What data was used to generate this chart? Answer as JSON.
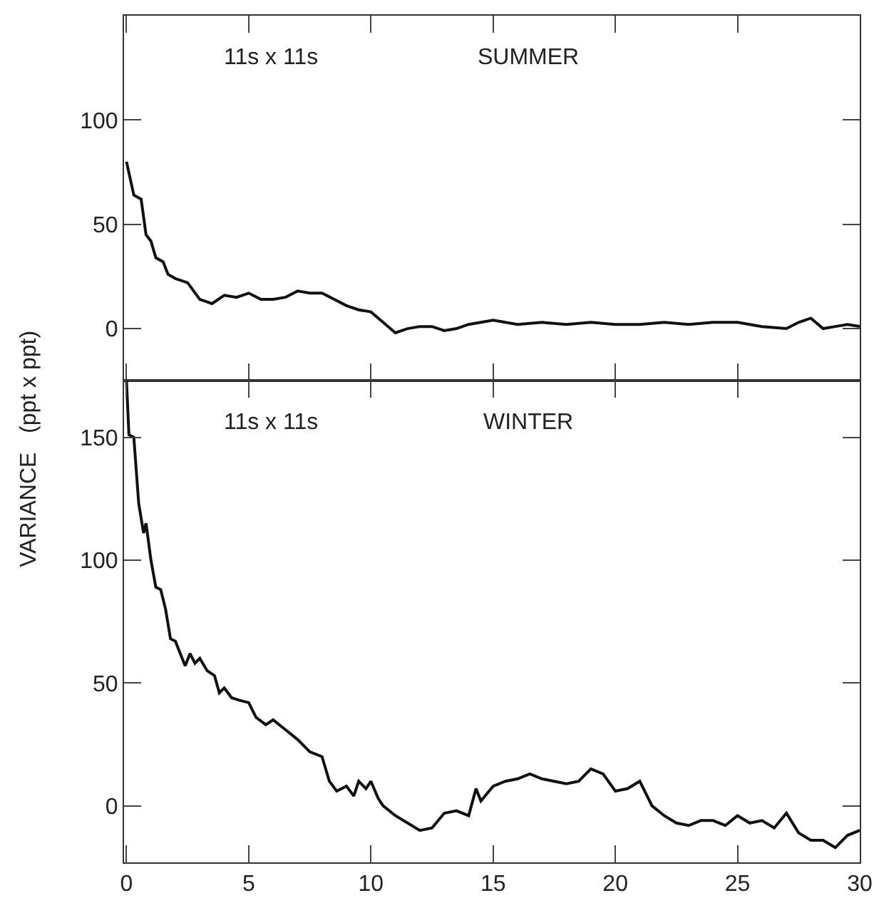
{
  "chart_data": [
    {
      "type": "line",
      "title": "SUMMER",
      "annotations": [
        "11s x 11s"
      ],
      "tick_labels": "y",
      "xlim": [
        -0.1,
        30
      ],
      "xticks": [
        {
          "value": 0,
          "label": null
        },
        {
          "value": 5,
          "label": null
        },
        {
          "value": 10,
          "label": null
        },
        {
          "value": 15,
          "label": null
        },
        {
          "value": 20,
          "label": null
        },
        {
          "value": 25,
          "label": null
        },
        {
          "value": 30,
          "label": null
        }
      ],
      "ylim": [
        -25,
        150
      ],
      "yticks": [
        0,
        50,
        100
      ],
      "series": [
        {
          "color": "#111111",
          "x": [
            0,
            0.3,
            0.6,
            0.8,
            1.0,
            1.2,
            1.5,
            1.7,
            2,
            2.5,
            3,
            3.5,
            4,
            4.5,
            5,
            5.5,
            6,
            6.5,
            7,
            7.5,
            8,
            8.5,
            9,
            9.5,
            10,
            10.5,
            11,
            11.5,
            12,
            12.5,
            13,
            13.5,
            14,
            15,
            16,
            17,
            18,
            19,
            20,
            21,
            22,
            23,
            24,
            25,
            26,
            27,
            27.5,
            28,
            28.5,
            29,
            29.5,
            30
          ],
          "values": [
            80,
            64,
            62,
            45,
            42,
            34,
            32,
            26,
            24,
            22,
            14,
            12,
            16,
            15,
            17,
            14,
            14,
            15,
            18,
            17,
            17,
            14,
            11,
            9,
            8,
            3,
            -2,
            0,
            1,
            1,
            -1,
            0,
            2,
            4,
            2,
            3,
            2,
            3,
            2,
            2,
            3,
            2,
            3,
            3,
            1,
            0,
            3,
            5,
            0,
            1,
            2,
            1
          ]
        }
      ]
    },
    {
      "type": "line",
      "title": "WINTER",
      "annotations": [
        "11s x 11s"
      ],
      "ylabel": "VARIANCE   (ppt x ppt)",
      "xlim": [
        -0.1,
        30
      ],
      "xticks": [
        0,
        5,
        10,
        15,
        20,
        25,
        30
      ],
      "ylim": [
        -23,
        173
      ],
      "yticks": [
        0,
        50,
        100,
        150
      ],
      "series": [
        {
          "color": "#111111",
          "x": [
            0,
            0.1,
            0.3,
            0.5,
            0.7,
            0.8,
            1.0,
            1.2,
            1.4,
            1.6,
            1.8,
            2.0,
            2.2,
            2.4,
            2.6,
            2.8,
            3.0,
            3.3,
            3.6,
            3.8,
            4.0,
            4.3,
            4.6,
            5,
            5.3,
            5.7,
            6,
            6.5,
            7,
            7.5,
            8,
            8.3,
            8.6,
            9,
            9.3,
            9.5,
            9.8,
            10,
            10.3,
            10.5,
            11,
            11.5,
            12,
            12.5,
            13,
            13.5,
            14,
            14.3,
            14.5,
            15,
            15.5,
            16,
            16.5,
            17,
            17.5,
            18,
            18.5,
            19,
            19.5,
            20,
            20.5,
            21,
            21.5,
            22,
            22.5,
            23,
            23.5,
            24,
            24.5,
            25,
            25.5,
            26,
            26.5,
            27,
            27.5,
            28,
            28.5,
            29,
            29.5,
            30
          ],
          "values": [
            173,
            151,
            150,
            123,
            111,
            115,
            100,
            89,
            88,
            80,
            68,
            67,
            62,
            57,
            62,
            58,
            60,
            55,
            53,
            46,
            48,
            44,
            43,
            42,
            36,
            33,
            35,
            31,
            27,
            22,
            20,
            10,
            6,
            8,
            4,
            10,
            7,
            10,
            3,
            0,
            -4,
            -7,
            -10,
            -9,
            -3,
            -2,
            -4,
            7,
            2,
            8,
            10,
            11,
            13,
            11,
            10,
            9,
            10,
            15,
            13,
            6,
            7,
            10,
            0,
            -4,
            -7,
            -8,
            -6,
            -6,
            -8,
            -4,
            -7,
            -6,
            -9,
            -3,
            -11,
            -14,
            -14,
            -17,
            -12,
            -10
          ]
        }
      ]
    }
  ]
}
